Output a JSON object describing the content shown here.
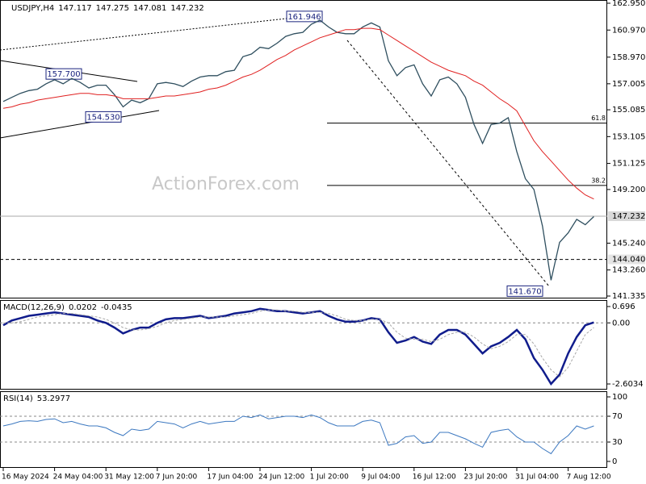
{
  "chart_data": [
    {
      "type": "line",
      "title": "USDJPY,H4",
      "header_values": [
        147.117,
        147.275,
        147.081,
        147.232
      ],
      "watermark": "ActionForex.com",
      "categories": [
        "16 May 2024",
        null,
        null,
        null,
        null,
        null,
        "24 May 04:00",
        null,
        null,
        null,
        null,
        null,
        "31 May 12:00",
        null,
        null,
        null,
        null,
        null,
        "7 Jun 20:00",
        null,
        null,
        null,
        null,
        null,
        "17 Jun 04:00",
        null,
        null,
        null,
        null,
        null,
        "24 Jun 12:00",
        null,
        null,
        null,
        null,
        null,
        "1 Jul 20:00",
        null,
        null,
        null,
        null,
        null,
        "9 Jul 04:00",
        null,
        null,
        null,
        null,
        null,
        "16 Jul 12:00",
        null,
        null,
        null,
        null,
        null,
        "23 Jul 20:00",
        null,
        null,
        null,
        null,
        null,
        "31 Jul 04:00",
        null,
        null,
        null,
        null,
        null,
        "7 Aug 12:00",
        null,
        null,
        null
      ],
      "series": [
        {
          "color": "#2f4f5f",
          "values": [
            155.7,
            156.0,
            156.3,
            156.5,
            156.6,
            157.0,
            157.3,
            157.0,
            157.4,
            157.1,
            156.7,
            156.9,
            156.9,
            156.2,
            155.3,
            155.8,
            155.6,
            155.9,
            157.0,
            157.1,
            157.0,
            156.8,
            157.2,
            157.5,
            157.6,
            157.6,
            157.9,
            158.0,
            159.0,
            159.2,
            159.7,
            159.6,
            160.0,
            160.5,
            160.7,
            160.8,
            161.4,
            161.7,
            161.2,
            160.8,
            160.7,
            160.7,
            161.2,
            161.5,
            161.2,
            158.7,
            157.6,
            158.2,
            158.4,
            157.0,
            156.1,
            157.3,
            157.5,
            157.0,
            156.0,
            154.0,
            152.6,
            154.0,
            154.1,
            154.5,
            152.0,
            150.0,
            149.2,
            146.5,
            142.5,
            145.3,
            146.0,
            147.0,
            146.6,
            147.2
          ]
        },
        {
          "color": "#e02020",
          "values": [
            155.2,
            155.3,
            155.5,
            155.6,
            155.8,
            155.9,
            156.0,
            156.1,
            156.2,
            156.3,
            156.3,
            156.2,
            156.2,
            156.1,
            155.9,
            155.9,
            155.9,
            155.9,
            156.0,
            156.1,
            156.1,
            156.2,
            156.3,
            156.4,
            156.6,
            156.7,
            156.9,
            157.2,
            157.5,
            157.7,
            158.0,
            158.4,
            158.8,
            159.1,
            159.5,
            159.8,
            160.1,
            160.4,
            160.6,
            160.8,
            161.0,
            161.0,
            161.1,
            161.1,
            161.0,
            160.6,
            160.2,
            159.8,
            159.4,
            159.0,
            158.6,
            158.3,
            158.0,
            157.8,
            157.6,
            157.2,
            156.9,
            156.4,
            155.9,
            155.5,
            155.0,
            153.9,
            152.8,
            152.0,
            151.3,
            150.6,
            149.9,
            149.3,
            148.8,
            148.5
          ]
        }
      ],
      "ylim": [
        141.335,
        162.95
      ],
      "yticks": [
        {
          "value": 162.95,
          "label": "162.950"
        },
        {
          "value": 160.97,
          "label": "160.970"
        },
        {
          "value": 158.97,
          "label": "158.970"
        },
        157.005,
        155.085,
        153.105,
        151.125,
        {
          "value": 149.2,
          "label": "149.200"
        },
        {
          "value": 145.24,
          "label": "145.240"
        },
        {
          "value": 143.26,
          "label": "143.260"
        },
        141.335
      ],
      "grid": false,
      "price_lines": [
        {
          "value": 147.232,
          "style": "solid"
        },
        {
          "value": 144.04,
          "label": "144.040",
          "style": "dashed"
        }
      ],
      "annotations": [
        {
          "value": 161.946
        },
        {
          "value": 157.7,
          "label": "157.700"
        },
        {
          "value": 154.53,
          "label": "154.530"
        },
        {
          "value": 141.67,
          "label": "141.670"
        }
      ],
      "fib_levels": [
        {
          "ratio": 61.8,
          "price": 154.1
        },
        {
          "ratio": 38.2,
          "price": 149.5
        }
      ]
    },
    {
      "type": "line",
      "title": "MACD(12,26,9)",
      "header_values": [
        0.0202,
        -0.0435
      ],
      "series": [
        {
          "color": "#101c8c",
          "values": [
            -0.1,
            0.1,
            0.2,
            0.3,
            0.35,
            0.4,
            0.45,
            0.4,
            0.35,
            0.3,
            0.25,
            0.1,
            0.0,
            -0.2,
            -0.45,
            -0.3,
            -0.2,
            -0.2,
            0.0,
            0.15,
            0.2,
            0.2,
            0.25,
            0.3,
            0.2,
            0.25,
            0.3,
            0.4,
            0.45,
            0.5,
            0.6,
            0.55,
            0.5,
            0.5,
            0.45,
            0.4,
            0.45,
            0.5,
            0.3,
            0.15,
            0.05,
            0.05,
            0.1,
            0.2,
            0.15,
            -0.4,
            -0.85,
            -0.75,
            -0.6,
            -0.8,
            -0.9,
            -0.5,
            -0.3,
            -0.3,
            -0.5,
            -0.9,
            -1.3,
            -1.0,
            -0.85,
            -0.6,
            -0.3,
            -0.7,
            -1.5,
            -2.0,
            -2.6,
            -2.2,
            -1.3,
            -0.6,
            -0.1,
            0.02
          ]
        },
        {
          "color": "#a8a8a8",
          "values": [
            0.0,
            0.0,
            0.05,
            0.15,
            0.25,
            0.3,
            0.35,
            0.4,
            0.4,
            0.35,
            0.3,
            0.25,
            0.15,
            0.0,
            -0.2,
            -0.3,
            -0.3,
            -0.25,
            -0.15,
            0.0,
            0.1,
            0.15,
            0.2,
            0.25,
            0.25,
            0.25,
            0.25,
            0.3,
            0.35,
            0.4,
            0.5,
            0.55,
            0.55,
            0.5,
            0.5,
            0.45,
            0.45,
            0.45,
            0.4,
            0.3,
            0.15,
            0.1,
            0.1,
            0.15,
            0.15,
            0.0,
            -0.4,
            -0.65,
            -0.7,
            -0.7,
            -0.8,
            -0.7,
            -0.5,
            -0.4,
            -0.4,
            -0.6,
            -0.9,
            -1.1,
            -1.0,
            -0.8,
            -0.5,
            -0.5,
            -0.9,
            -1.5,
            -2.0,
            -2.3,
            -1.9,
            -1.2,
            -0.5,
            -0.2
          ]
        }
      ],
      "ylim": [
        -2.6034,
        0.696
      ],
      "yticks": [
        0.696,
        {
          "value": 0,
          "label": "0.00"
        },
        -2.6034
      ],
      "grid": true
    },
    {
      "type": "line",
      "title": "RSI(14)",
      "header_values": [
        53.2977
      ],
      "series": [
        {
          "color": "#3c78c0",
          "values": [
            55,
            58,
            62,
            63,
            62,
            65,
            66,
            60,
            62,
            58,
            55,
            55,
            52,
            45,
            40,
            50,
            48,
            50,
            62,
            60,
            58,
            52,
            58,
            62,
            58,
            60,
            62,
            62,
            70,
            68,
            72,
            66,
            68,
            70,
            70,
            68,
            72,
            68,
            60,
            55,
            55,
            55,
            62,
            64,
            60,
            25,
            28,
            38,
            40,
            28,
            30,
            45,
            45,
            40,
            35,
            28,
            22,
            45,
            48,
            50,
            38,
            30,
            30,
            20,
            12,
            30,
            40,
            55,
            50,
            55
          ]
        }
      ],
      "ylim": [
        0,
        100
      ],
      "yticks": [
        100,
        70,
        30,
        0
      ],
      "grid": true
    }
  ]
}
